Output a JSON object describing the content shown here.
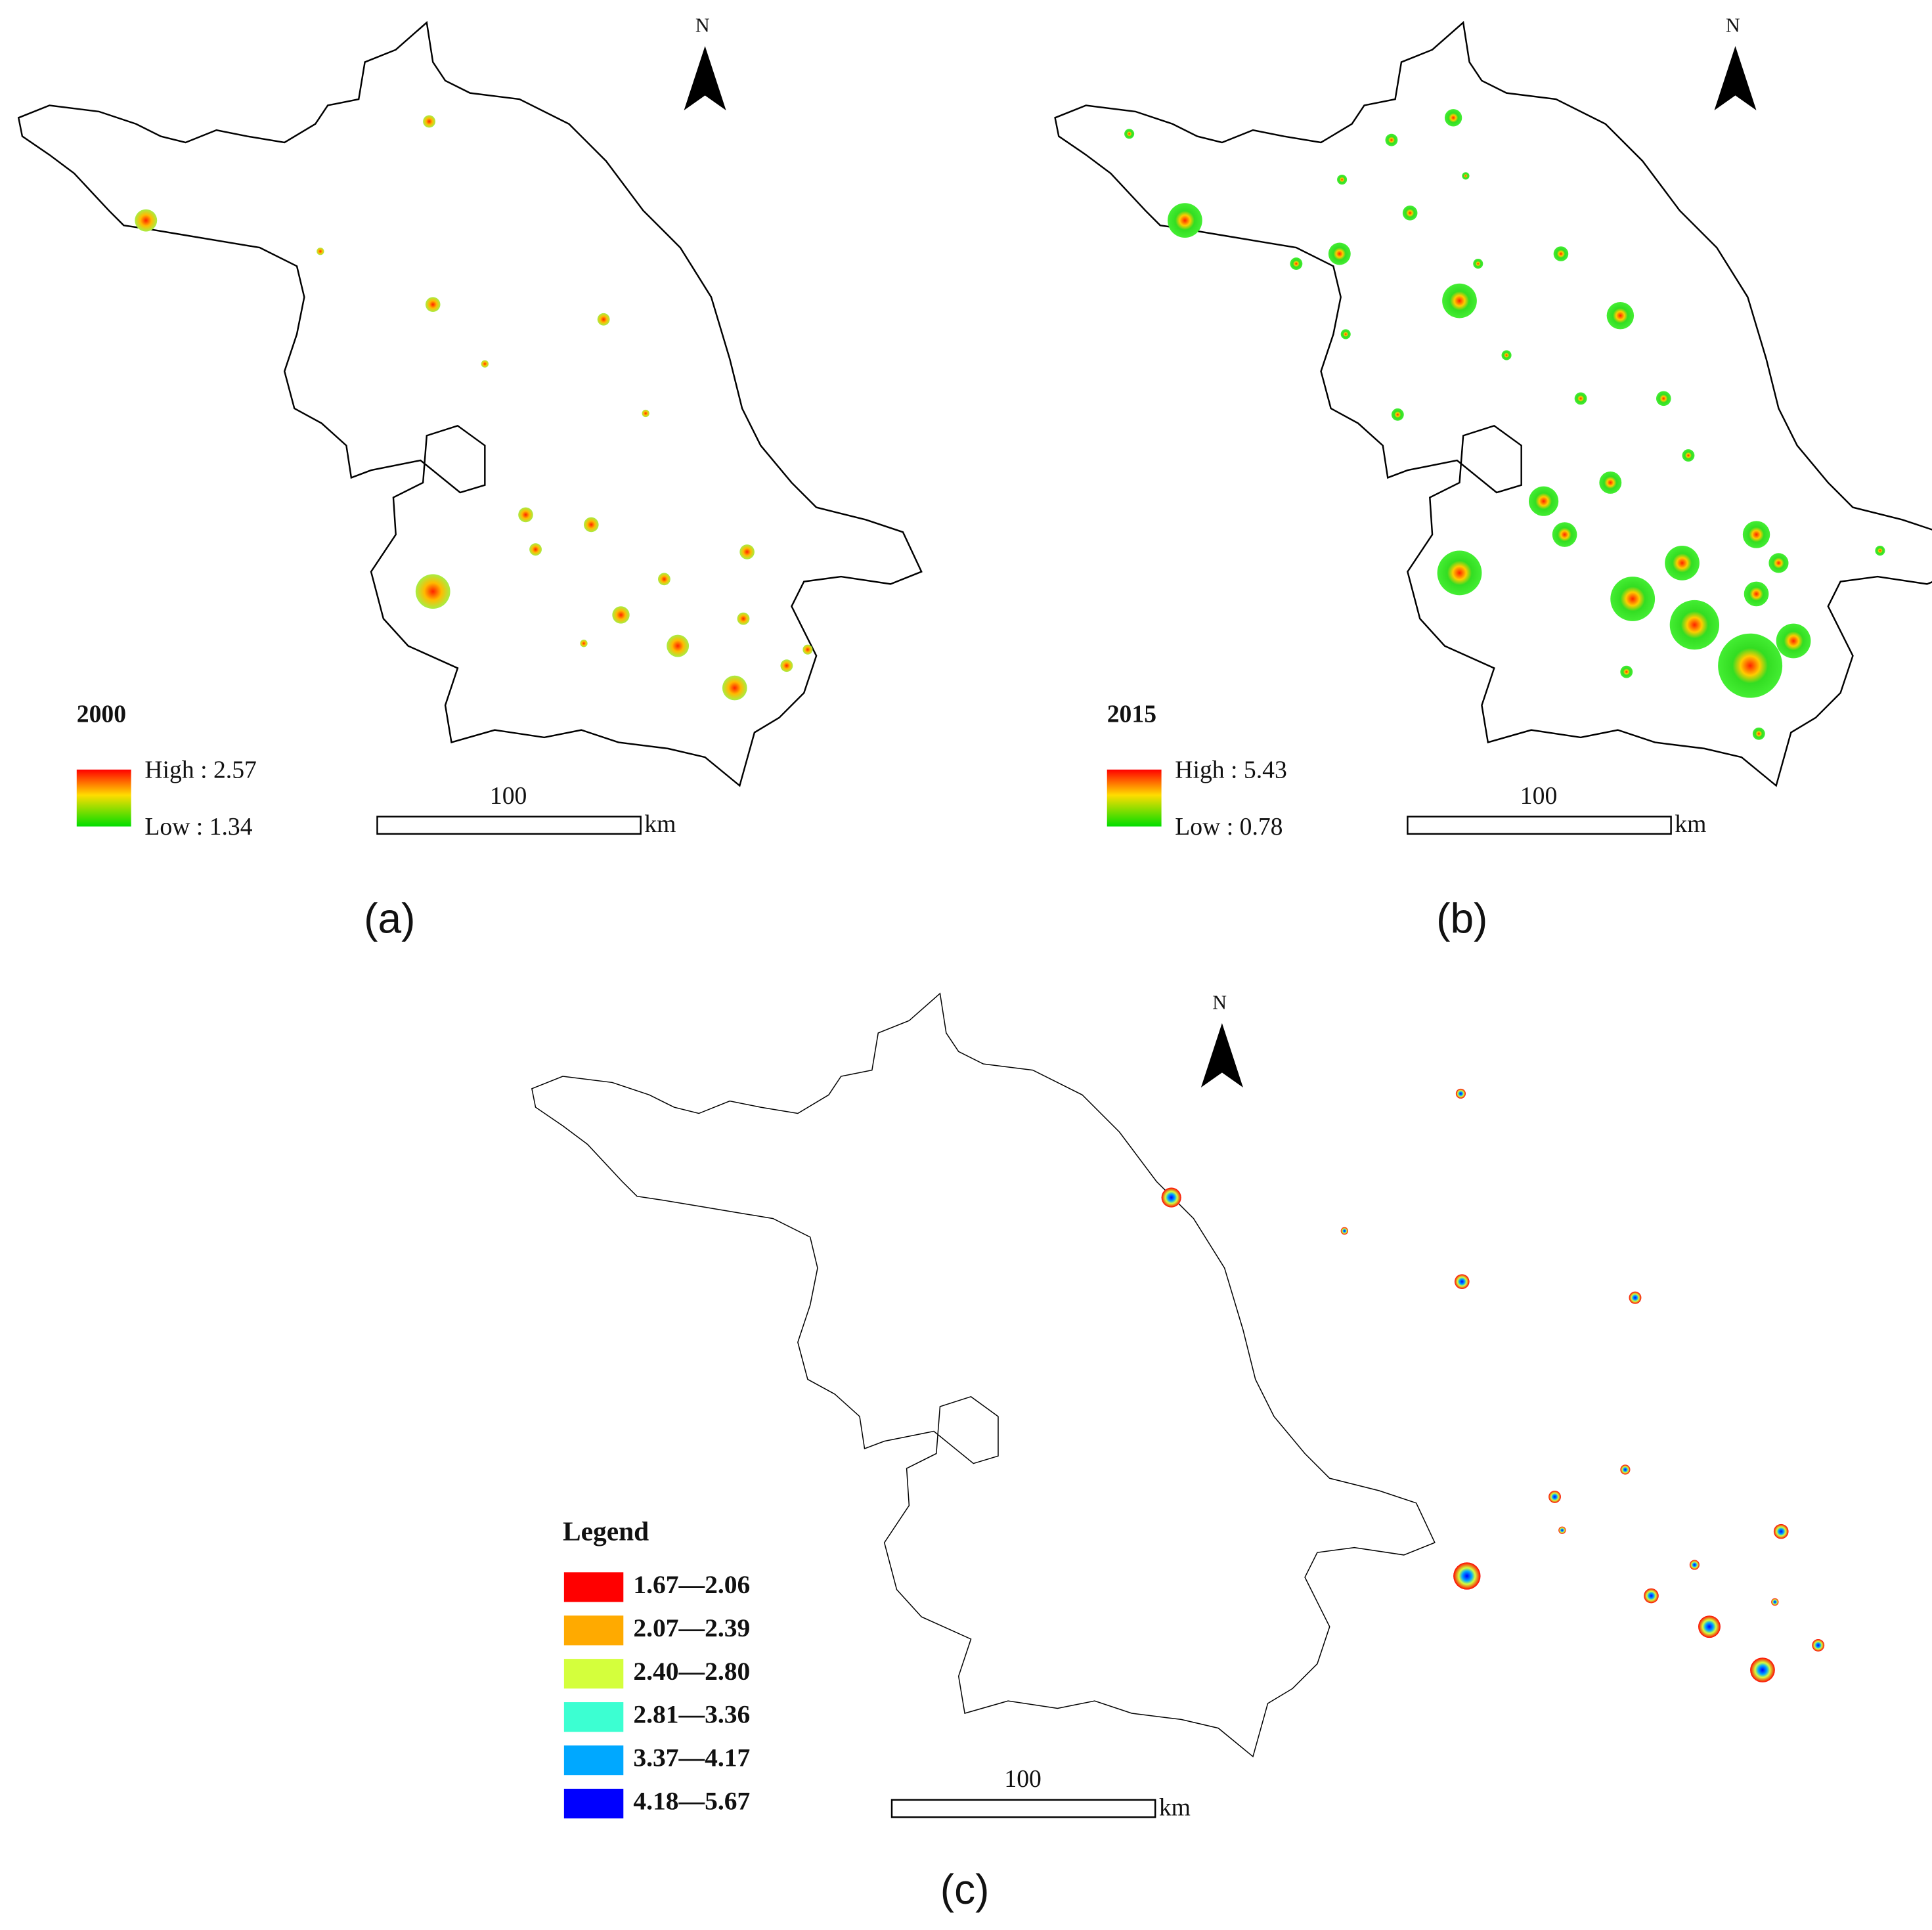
{
  "panels": [
    {
      "year": "2000",
      "high": "High : 2.57",
      "low": "Low : 1.34",
      "scale": "100",
      "unit": "km",
      "north": "N",
      "caption": "(a)"
    },
    {
      "year": "2015",
      "high": "High : 5.43",
      "low": "Low : 0.78",
      "scale": "100",
      "unit": "km",
      "north": "N",
      "caption": "(b)"
    },
    {
      "scale": "100",
      "unit": "km",
      "north": "N",
      "caption": "(c)",
      "legend": {
        "title": "Legend",
        "items": [
          {
            "label": "1.67—2.06",
            "color": "#ff0000"
          },
          {
            "label": "2.07—2.39",
            "color": "#ffaa00"
          },
          {
            "label": "2.40—2.80",
            "color": "#d4ff3c"
          },
          {
            "label": "2.81—3.36",
            "color": "#3cffd2"
          },
          {
            "label": "3.37—4.17",
            "color": "#00a8ff"
          },
          {
            "label": "4.18—5.67",
            "color": "#0000ff"
          }
        ]
      }
    }
  ]
}
